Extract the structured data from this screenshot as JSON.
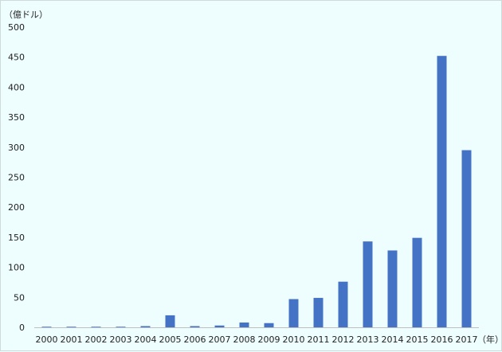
{
  "chart_data": {
    "type": "bar",
    "ylabel": "（億ドル）",
    "xlabel": "（年）",
    "categories": [
      "2000",
      "2001",
      "2002",
      "2003",
      "2004",
      "2005",
      "2006",
      "2007",
      "2008",
      "2009",
      "2010",
      "2011",
      "2012",
      "2013",
      "2014",
      "2015",
      "2016",
      "2017"
    ],
    "series": [
      {
        "values": [
          1,
          1,
          1,
          1,
          2,
          20,
          2,
          3,
          8,
          7,
          47,
          49,
          76,
          143,
          128,
          149,
          452,
          295
        ]
      }
    ],
    "ylim": [
      0,
      500
    ],
    "yticks": [
      0,
      50,
      100,
      150,
      200,
      250,
      300,
      350,
      400,
      450,
      500
    ],
    "grid": false,
    "legend": "none",
    "bar_color": "#4472c4"
  }
}
